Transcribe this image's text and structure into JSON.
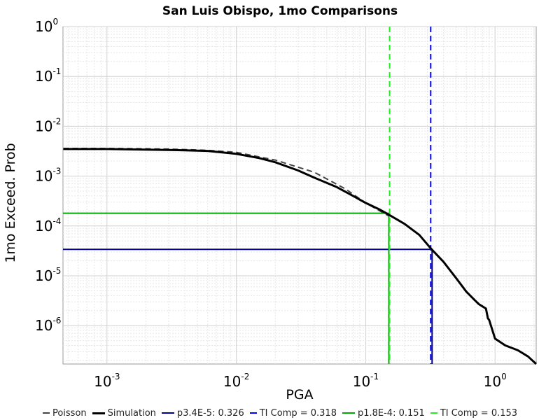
{
  "chart_data": {
    "type": "line",
    "title": "San Luis Obispo, 1mo Comparisons",
    "xlabel": "PGA",
    "ylabel": "1mo Exceed. Prob",
    "x_scale": "log",
    "y_scale": "log",
    "xlim": [
      0.000457,
      2.08
    ],
    "ylim": [
      1.7e-07,
      1.0
    ],
    "grid": true,
    "x_ticks": [
      {
        "base": "10",
        "exp": "-3",
        "value": 0.001
      },
      {
        "base": "10",
        "exp": "-2",
        "value": 0.01
      },
      {
        "base": "10",
        "exp": "-1",
        "value": 0.1
      },
      {
        "base": "10",
        "exp": "0",
        "value": 1.0
      }
    ],
    "y_ticks": [
      {
        "base": "10",
        "exp": "0",
        "value": 1.0
      },
      {
        "base": "10",
        "exp": "-1",
        "value": 0.1
      },
      {
        "base": "10",
        "exp": "-2",
        "value": 0.01
      },
      {
        "base": "10",
        "exp": "-3",
        "value": 0.001
      },
      {
        "base": "10",
        "exp": "-4",
        "value": 0.0001
      },
      {
        "base": "10",
        "exp": "-5",
        "value": 1e-05
      },
      {
        "base": "10",
        "exp": "-6",
        "value": 1e-06
      }
    ],
    "series": [
      {
        "name": "Poisson",
        "color": "#444444",
        "style": "dashed",
        "width": 2,
        "x": [
          0.00046,
          0.001,
          0.003,
          0.006,
          0.01,
          0.02,
          0.04,
          0.07,
          0.1,
          0.15
        ],
        "y": [
          0.0036,
          0.0036,
          0.0035,
          0.0033,
          0.003,
          0.0021,
          0.0012,
          0.00055,
          0.00029,
          0.00016
        ]
      },
      {
        "name": "Simulation",
        "color": "#000000",
        "style": "solid",
        "width": 3,
        "x": [
          0.00046,
          0.001,
          0.002,
          0.004,
          0.006,
          0.01,
          0.015,
          0.02,
          0.03,
          0.04,
          0.06,
          0.08,
          0.1,
          0.13,
          0.15,
          0.2,
          0.26,
          0.32,
          0.4,
          0.5,
          0.6,
          0.7,
          0.75,
          0.85,
          0.88,
          0.9,
          1.0,
          1.2,
          1.5,
          1.8,
          2.08
        ],
        "y": [
          0.0035,
          0.0035,
          0.0034,
          0.0033,
          0.0032,
          0.0028,
          0.0023,
          0.0019,
          0.0013,
          0.00093,
          0.0006,
          0.0004,
          0.00029,
          0.00021,
          0.00017,
          0.00011,
          6.6e-05,
          3.5e-05,
          1.9e-05,
          9e-06,
          4.8e-06,
          3.2e-06,
          2.7e-06,
          2.2e-06,
          1.4e-06,
          1.3e-06,
          5.5e-07,
          4e-07,
          3.2e-07,
          2.4e-07,
          1.7e-07
        ]
      },
      {
        "name": "p3.4E-5: 0.326",
        "color": "#00008b",
        "style": "solid",
        "width": 2,
        "x": [
          0.000457,
          0.326,
          0.326
        ],
        "y": [
          3.4e-05,
          3.4e-05,
          1.7e-07
        ]
      },
      {
        "name": "TI Comp = 0.318",
        "color": "#0000ff",
        "style": "dashed",
        "width": 2,
        "x": [
          0.318,
          0.318
        ],
        "y": [
          1.0,
          1.7e-07
        ]
      },
      {
        "name": "p1.8E-4: 0.151",
        "color": "#00aa00",
        "style": "solid",
        "width": 2,
        "x": [
          0.000457,
          0.151,
          0.151
        ],
        "y": [
          0.00018,
          0.00018,
          1.7e-07
        ]
      },
      {
        "name": "TI Comp = 0.153",
        "color": "#22ee22",
        "style": "dashed",
        "width": 2,
        "x": [
          0.153,
          0.153
        ],
        "y": [
          1.0,
          1.7e-07
        ]
      }
    ]
  }
}
